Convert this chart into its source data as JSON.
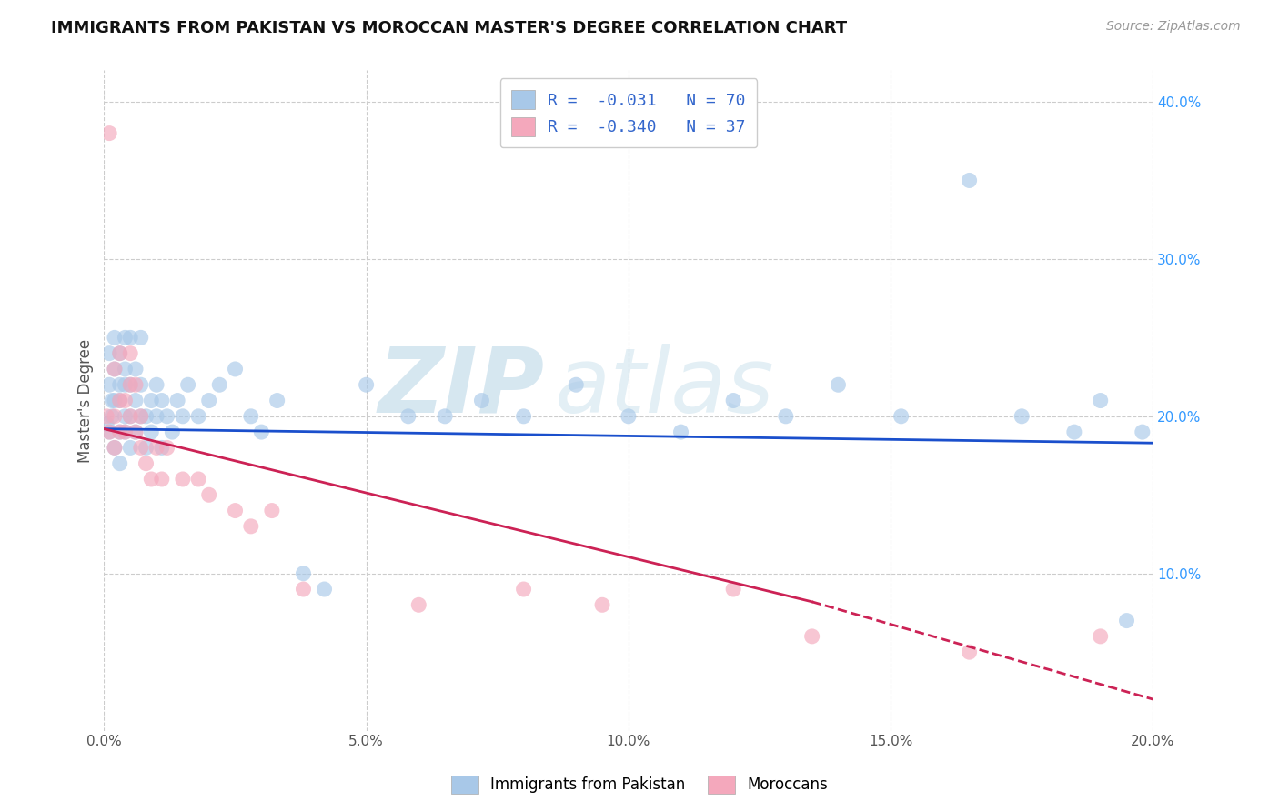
{
  "title": "IMMIGRANTS FROM PAKISTAN VS MOROCCAN MASTER'S DEGREE CORRELATION CHART",
  "source_text": "Source: ZipAtlas.com",
  "ylabel": "Master's Degree",
  "xlim": [
    0.0,
    0.2
  ],
  "ylim": [
    0.0,
    0.42
  ],
  "xticks": [
    0.0,
    0.05,
    0.1,
    0.15,
    0.2
  ],
  "xtick_labels": [
    "0.0%",
    "5.0%",
    "10.0%",
    "15.0%",
    "20.0%"
  ],
  "yticks_right": [
    0.1,
    0.2,
    0.3,
    0.4
  ],
  "ytick_labels_right": [
    "10.0%",
    "20.0%",
    "30.0%",
    "40.0%"
  ],
  "background_color": "#ffffff",
  "grid_color": "#cccccc",
  "blue_color": "#a8c8e8",
  "pink_color": "#f4a8bc",
  "blue_line_color": "#1a4fcc",
  "pink_line_color": "#cc2255",
  "R_blue": -0.031,
  "N_blue": 70,
  "R_pink": -0.34,
  "N_pink": 37,
  "legend_label_blue": "Immigrants from Pakistan",
  "legend_label_pink": "Moroccans",
  "watermark_zip": "ZIP",
  "watermark_atlas": "atlas",
  "blue_scatter_x": [
    0.0005,
    0.001,
    0.001,
    0.001,
    0.0015,
    0.0015,
    0.002,
    0.002,
    0.002,
    0.002,
    0.003,
    0.003,
    0.003,
    0.003,
    0.003,
    0.004,
    0.004,
    0.004,
    0.004,
    0.004,
    0.005,
    0.005,
    0.005,
    0.005,
    0.006,
    0.006,
    0.006,
    0.007,
    0.007,
    0.007,
    0.008,
    0.008,
    0.009,
    0.009,
    0.01,
    0.01,
    0.011,
    0.011,
    0.012,
    0.013,
    0.014,
    0.015,
    0.016,
    0.018,
    0.02,
    0.022,
    0.025,
    0.028,
    0.03,
    0.033,
    0.038,
    0.042,
    0.05,
    0.058,
    0.065,
    0.072,
    0.08,
    0.09,
    0.1,
    0.11,
    0.12,
    0.13,
    0.14,
    0.152,
    0.165,
    0.175,
    0.185,
    0.19,
    0.195,
    0.198
  ],
  "blue_scatter_y": [
    0.195,
    0.19,
    0.22,
    0.24,
    0.2,
    0.21,
    0.18,
    0.21,
    0.23,
    0.25,
    0.17,
    0.19,
    0.21,
    0.22,
    0.24,
    0.19,
    0.2,
    0.22,
    0.23,
    0.25,
    0.18,
    0.2,
    0.22,
    0.25,
    0.19,
    0.21,
    0.23,
    0.2,
    0.22,
    0.25,
    0.18,
    0.2,
    0.19,
    0.21,
    0.2,
    0.22,
    0.18,
    0.21,
    0.2,
    0.19,
    0.21,
    0.2,
    0.22,
    0.2,
    0.21,
    0.22,
    0.23,
    0.2,
    0.19,
    0.21,
    0.1,
    0.09,
    0.22,
    0.2,
    0.2,
    0.21,
    0.2,
    0.22,
    0.2,
    0.19,
    0.21,
    0.2,
    0.22,
    0.2,
    0.35,
    0.2,
    0.19,
    0.21,
    0.07,
    0.19
  ],
  "pink_scatter_x": [
    0.0005,
    0.001,
    0.001,
    0.002,
    0.002,
    0.002,
    0.003,
    0.003,
    0.003,
    0.004,
    0.004,
    0.005,
    0.005,
    0.005,
    0.006,
    0.006,
    0.007,
    0.007,
    0.008,
    0.009,
    0.01,
    0.011,
    0.012,
    0.015,
    0.018,
    0.02,
    0.025,
    0.028,
    0.032,
    0.038,
    0.06,
    0.08,
    0.095,
    0.12,
    0.135,
    0.165,
    0.19
  ],
  "pink_scatter_y": [
    0.2,
    0.19,
    0.38,
    0.18,
    0.2,
    0.23,
    0.19,
    0.21,
    0.24,
    0.19,
    0.21,
    0.2,
    0.22,
    0.24,
    0.19,
    0.22,
    0.18,
    0.2,
    0.17,
    0.16,
    0.18,
    0.16,
    0.18,
    0.16,
    0.16,
    0.15,
    0.14,
    0.13,
    0.14,
    0.09,
    0.08,
    0.09,
    0.08,
    0.09,
    0.06,
    0.05,
    0.06
  ],
  "blue_trend_x0": 0.0,
  "blue_trend_y0": 0.192,
  "blue_trend_x1": 0.2,
  "blue_trend_y1": 0.183,
  "pink_trend_x0": 0.0,
  "pink_trend_y0": 0.192,
  "pink_trend_solid_x1": 0.135,
  "pink_trend_y_at_solid": 0.082,
  "pink_trend_x1": 0.2,
  "pink_trend_y1": 0.02
}
